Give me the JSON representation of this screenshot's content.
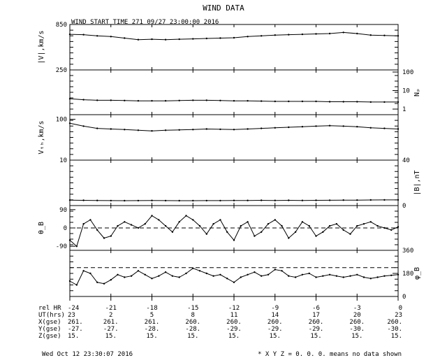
{
  "title": "WIND DATA",
  "start_label": "WIND START TIME 271 09/27 23:00:00 2016",
  "footer": {
    "timestamp": "Wed Oct 12 23:30:07 2016",
    "note": "* X Y Z = 0. 0. 0. means no data shown"
  },
  "chart_data": {
    "type": "line",
    "x_ticks": [
      "-24",
      "-21",
      "-18",
      "-15",
      "-12",
      "-9",
      "-6",
      "-3",
      "0"
    ],
    "x_range": [
      -24,
      0
    ],
    "panels": [
      {
        "id": "V",
        "ylabel": "|V|,km/s",
        "label_side": "left",
        "scale": "linear",
        "ylim": [
          250,
          850
        ],
        "tick_labels": [
          {
            "v": 850,
            "t": "850"
          },
          {
            "v": 250,
            "t": "250"
          }
        ],
        "x": [
          -24,
          -23,
          -22,
          -21,
          -20,
          -19,
          -18,
          -17,
          -16,
          -15,
          -14,
          -13,
          -12,
          -11,
          -10,
          -9,
          -8,
          -7,
          -6,
          -5,
          -4,
          -3,
          -2,
          -1,
          0
        ],
        "y": [
          720,
          715,
          700,
          690,
          670,
          650,
          655,
          650,
          655,
          660,
          665,
          670,
          675,
          690,
          700,
          710,
          715,
          720,
          725,
          730,
          745,
          730,
          710,
          705,
          700
        ]
      },
      {
        "id": "Np",
        "ylabel": "Nₚ",
        "label_side": "right",
        "scale": "log",
        "ylim": [
          0.5,
          130
        ],
        "tick_labels": [
          {
            "v": 100,
            "t": "100"
          },
          {
            "v": 10,
            "t": "10"
          },
          {
            "v": 1,
            "t": "1"
          }
        ],
        "x": [
          -24,
          -23,
          -22,
          -21,
          -20,
          -19,
          -18,
          -17,
          -16,
          -15,
          -14,
          -13,
          -12,
          -11,
          -10,
          -9,
          -8,
          -7,
          -6,
          -5,
          -4,
          -3,
          -2,
          -1,
          0
        ],
        "y": [
          3.6,
          3.2,
          3.0,
          3.0,
          2.9,
          2.8,
          2.8,
          2.8,
          2.9,
          3.0,
          3.0,
          2.9,
          2.8,
          2.8,
          2.7,
          2.6,
          2.6,
          2.6,
          2.6,
          2.5,
          2.5,
          2.5,
          2.4,
          2.4,
          2.4
        ]
      },
      {
        "id": "Vth",
        "ylabel": "Vₜₕ,km/s",
        "label_side": "left",
        "scale": "log",
        "ylim": [
          10,
          130
        ],
        "tick_labels": [
          {
            "v": 100,
            "t": "100"
          },
          {
            "v": 10,
            "t": "10"
          }
        ],
        "x": [
          -24,
          -23,
          -22,
          -21,
          -20,
          -19,
          -18,
          -17,
          -16,
          -15,
          -14,
          -13,
          -12,
          -11,
          -10,
          -9,
          -8,
          -7,
          -6,
          -5,
          -4,
          -3,
          -2,
          -1,
          0
        ],
        "y": [
          80,
          68,
          60,
          58,
          56,
          54,
          52,
          54,
          55,
          56,
          58,
          57,
          56,
          58,
          60,
          62,
          64,
          66,
          68,
          70,
          68,
          66,
          62,
          60,
          58
        ]
      },
      {
        "id": "B",
        "ylabel": "|B|,nT",
        "label_side": "right",
        "scale": "linear",
        "ylim": [
          0,
          40
        ],
        "tick_labels": [
          {
            "v": 40,
            "t": "40"
          },
          {
            "v": 0,
            "t": "0"
          }
        ],
        "x": [
          -24,
          -23,
          -22,
          -21,
          -20,
          -19,
          -18,
          -17,
          -16,
          -15,
          -14,
          -13,
          -12,
          -11,
          -10,
          -9,
          -8,
          -7,
          -6,
          -5,
          -4,
          -3,
          -2,
          -1,
          0
        ],
        "y": [
          4.8,
          4.6,
          4.5,
          4.4,
          4.3,
          4.4,
          4.5,
          4.4,
          4.3,
          4.3,
          4.4,
          4.4,
          4.5,
          4.5,
          4.6,
          4.5,
          4.6,
          4.5,
          4.6,
          4.7,
          4.8,
          4.8,
          4.9,
          5.0,
          5.0
        ]
      },
      {
        "id": "thetaB",
        "ylabel": "θ_B",
        "label_side": "left",
        "scale": "linear",
        "ylim": [
          -110,
          110
        ],
        "dashed_at": 0,
        "tick_labels": [
          {
            "v": 90,
            "t": "90"
          },
          {
            "v": 0,
            "t": "0"
          },
          {
            "v": -90,
            "t": "-90"
          }
        ],
        "x": [
          -24,
          -23.5,
          -23,
          -22.5,
          -22,
          -21.5,
          -21,
          -20.5,
          -20,
          -19.5,
          -19,
          -18.5,
          -18,
          -17.5,
          -17,
          -16.5,
          -16,
          -15.5,
          -15,
          -14.5,
          -14,
          -13.5,
          -13,
          -12.5,
          -12,
          -11.5,
          -11,
          -10.5,
          -10,
          -9.5,
          -9,
          -8.5,
          -8,
          -7.5,
          -7,
          -6.5,
          -6,
          -5.5,
          -5,
          -4.5,
          -4,
          -3.5,
          -3,
          -2.5,
          -2,
          -1.5,
          -1,
          -0.5,
          0
        ],
        "y": [
          -60,
          -90,
          20,
          40,
          -10,
          -50,
          -40,
          10,
          30,
          15,
          0,
          20,
          60,
          40,
          10,
          -20,
          30,
          60,
          40,
          10,
          -30,
          20,
          40,
          -20,
          -60,
          10,
          30,
          -40,
          -20,
          20,
          40,
          10,
          -50,
          -20,
          30,
          10,
          -40,
          -20,
          10,
          20,
          -10,
          -30,
          10,
          20,
          30,
          10,
          0,
          -10,
          5
        ]
      },
      {
        "id": "phiB",
        "ylabel": "φ_B",
        "label_side": "right",
        "scale": "linear",
        "ylim": [
          0,
          360
        ],
        "dashed_at": 225,
        "tick_labels": [
          {
            "v": 360,
            "t": "360"
          },
          {
            "v": 180,
            "t": "180"
          },
          {
            "v": 0,
            "t": "0"
          }
        ],
        "x": [
          -24,
          -23.5,
          -23,
          -22.5,
          -22,
          -21.5,
          -21,
          -20.5,
          -20,
          -19.5,
          -19,
          -18.5,
          -18,
          -17.5,
          -17,
          -16.5,
          -16,
          -15.5,
          -15,
          -14.5,
          -14,
          -13.5,
          -13,
          -12.5,
          -12,
          -11.5,
          -11,
          -10.5,
          -10,
          -9.5,
          -9,
          -8.5,
          -8,
          -7.5,
          -7,
          -6.5,
          -6,
          -5.5,
          -5,
          -4.5,
          -4,
          -3.5,
          -3,
          -2.5,
          -2,
          -1.5,
          -1,
          -0.5,
          0
        ],
        "y": [
          120,
          90,
          200,
          180,
          110,
          100,
          130,
          170,
          150,
          160,
          200,
          170,
          140,
          160,
          190,
          160,
          150,
          180,
          220,
          200,
          180,
          160,
          170,
          140,
          110,
          150,
          170,
          190,
          160,
          170,
          210,
          200,
          160,
          150,
          170,
          180,
          150,
          160,
          170,
          160,
          150,
          160,
          170,
          150,
          140,
          150,
          160,
          165,
          170
        ]
      }
    ],
    "orbit_table": {
      "rows": [
        {
          "label": "rel HR",
          "values": [
            "-24",
            "-21",
            "-18",
            "-15",
            "-12",
            "-9",
            "-6",
            "-3",
            "0"
          ]
        },
        {
          "label": "UT(hrs)",
          "values": [
            "23",
            "2",
            "5",
            "8",
            "11",
            "14",
            "17",
            "20",
            "23"
          ]
        },
        {
          "label": "X(gse)",
          "values": [
            "261.",
            "261.",
            "261.",
            "260.",
            "260.",
            "260.",
            "260.",
            "260.",
            "260."
          ]
        },
        {
          "label": "Y(gse)",
          "values": [
            "-27.",
            "-27.",
            "-28.",
            "-28.",
            "-29.",
            "-29.",
            "-29.",
            "-30.",
            "-30."
          ]
        },
        {
          "label": "Z(gse)",
          "values": [
            "15.",
            "15.",
            "15.",
            "15.",
            "15.",
            "15.",
            "15.",
            "15.",
            "15."
          ]
        }
      ]
    }
  }
}
